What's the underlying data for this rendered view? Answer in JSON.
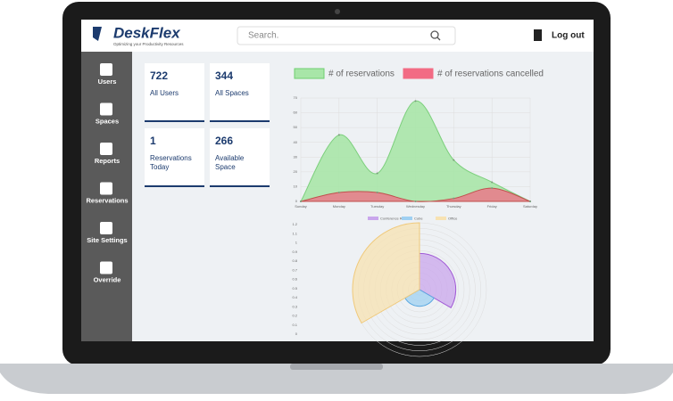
{
  "header": {
    "logo": "DeskFlex",
    "tagline": "Optimizing your Productivity Resources",
    "search_placeholder": "Search.",
    "logout": "Log out"
  },
  "sidebar": [
    "Users",
    "Spaces",
    "Reports",
    "Reservations",
    "Site Settings",
    "Override"
  ],
  "stats": [
    {
      "value": 722,
      "label": "All Users"
    },
    {
      "value": 344,
      "label": "All Spaces"
    },
    {
      "value": 1,
      "label": "Reservations Today"
    },
    {
      "value": 266,
      "label": "Available Space"
    }
  ],
  "chart_data": [
    {
      "type": "area",
      "categories": [
        "Sunday",
        "Monday",
        "Tuesday",
        "Wednesday",
        "Thursday",
        "Friday",
        "Saturday"
      ],
      "series": [
        {
          "name": "# of reservations",
          "color": "#a8e6a8",
          "values": [
            0,
            45,
            19,
            68,
            28,
            13,
            0
          ]
        },
        {
          "name": "# of reservations cancelled",
          "color": "#f26b84",
          "values": [
            0,
            6,
            6,
            0,
            2,
            9,
            0
          ]
        }
      ],
      "ylim": [
        0,
        70
      ],
      "yticks": [
        0,
        10,
        20,
        30,
        40,
        50,
        60,
        70
      ],
      "grid": true
    },
    {
      "type": "polar",
      "categories": [
        "Conference Room",
        "Cube",
        "Office"
      ],
      "values": [
        0.65,
        0.3,
        1.2
      ],
      "colors": [
        "#c9a6ec",
        "#9fd0f2",
        "#f7e2b2"
      ],
      "rlim": [
        0,
        1.2
      ],
      "rticks": [
        0,
        0.1,
        0.2,
        0.3,
        0.4,
        0.5,
        0.6,
        0.7,
        0.8,
        0.9,
        1,
        1.1,
        1.2
      ]
    }
  ]
}
